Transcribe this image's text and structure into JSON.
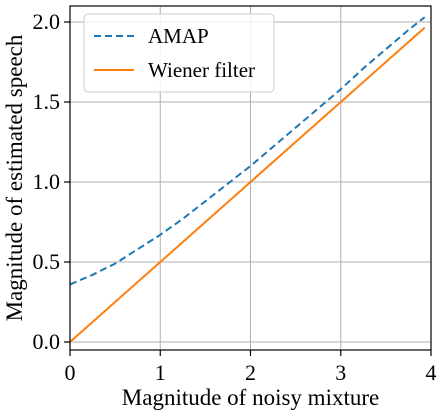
{
  "chart_data": {
    "type": "line",
    "xlabel": "Magnitude of noisy mixture",
    "ylabel": "Magnitude of estimated speech",
    "xlim": [
      0,
      4
    ],
    "ylim": [
      -0.05,
      2.1
    ],
    "xticks": [
      0,
      1,
      2,
      3,
      4
    ],
    "xtick_labels": [
      "0",
      "1",
      "2",
      "3",
      "4"
    ],
    "yticks": [
      0.0,
      0.5,
      1.0,
      1.5,
      2.0
    ],
    "ytick_labels": [
      "0.0",
      "0.5",
      "1.0",
      "1.5",
      "2.0"
    ],
    "grid": true,
    "legend_position": "top-left",
    "series": [
      {
        "name": "AMAP",
        "style": "dashed",
        "color": "#1f77b4",
        "x": [
          0,
          0.25,
          0.5,
          0.75,
          1.0,
          1.25,
          1.5,
          1.75,
          2.0,
          2.25,
          2.5,
          2.75,
          3.0,
          3.25,
          3.5,
          3.75,
          3.93
        ],
        "y": [
          0.36,
          0.42,
          0.49,
          0.58,
          0.67,
          0.77,
          0.88,
          0.99,
          1.1,
          1.22,
          1.34,
          1.46,
          1.58,
          1.71,
          1.83,
          1.95,
          2.03
        ]
      },
      {
        "name": "Wiener filter",
        "style": "solid",
        "color": "#ff7f0e",
        "x": [
          0,
          0.5,
          1.0,
          1.5,
          2.0,
          2.5,
          3.0,
          3.5,
          3.93
        ],
        "y": [
          0,
          0.25,
          0.5,
          0.75,
          1.0,
          1.25,
          1.5,
          1.75,
          1.965
        ]
      }
    ]
  }
}
